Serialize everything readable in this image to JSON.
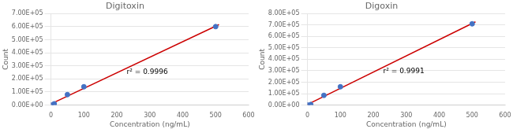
{
  "chart_data": [
    {
      "type": "scatter",
      "title": "Digitoxin",
      "x_label": "Concentration (ng/mL)",
      "y_label": "Count",
      "series": [
        {
          "type": "scatter",
          "color": "#4472C4",
          "x": [
            0,
            10,
            50,
            100,
            500
          ],
          "values": [
            0,
            10000,
            80000,
            140000,
            600000
          ]
        },
        {
          "type": "line",
          "color": "#CC0000",
          "x": [
            0,
            510
          ],
          "values": [
            9131.53,
            615214.27
          ]
        }
      ],
      "annotations": [
        {
          "text": "r² = 0.9996",
          "x": 230,
          "y": 240000
        }
      ],
      "xlim": [
        0,
        600
      ],
      "xticks": [
        0,
        100,
        200,
        300,
        400,
        500,
        600
      ],
      "ylim": [
        0,
        700000
      ],
      "yticks": [
        {
          "value": 0,
          "label": "0.00E+00"
        },
        {
          "value": 100000,
          "label": "1.00E+05"
        },
        {
          "value": 200000,
          "label": "2.00E+05"
        },
        {
          "value": 300000,
          "label": "3.00E+05"
        },
        {
          "value": 400000,
          "label": "4.00E+05"
        },
        {
          "value": 500000,
          "label": "5.00E+05"
        },
        {
          "value": 600000,
          "label": "6.00E+05"
        },
        {
          "value": 700000,
          "label": "7.00E+05"
        }
      ],
      "grid": "y"
    },
    {
      "type": "scatter",
      "title": "Digoxin",
      "x_label": "Concentration (ng/mL)",
      "y_label": "Count",
      "series": [
        {
          "type": "scatter",
          "color": "#4472C4",
          "x": [
            0,
            10,
            50,
            100,
            500
          ],
          "values": [
            0,
            5000,
            85000,
            160000,
            710000
          ]
        },
        {
          "type": "line",
          "color": "#CC0000",
          "x": [
            0,
            510
          ],
          "values": [
            5012.54,
            727464.1
          ]
        }
      ],
      "annotations": [
        {
          "text": "r² = 0.9991",
          "x": 230,
          "y": 280000
        }
      ],
      "xlim": [
        0,
        600
      ],
      "xticks": [
        0,
        100,
        200,
        300,
        400,
        500,
        600
      ],
      "ylim": [
        0,
        800000
      ],
      "yticks": [
        {
          "value": 0,
          "label": "0.00E+00"
        },
        {
          "value": 100000,
          "label": "1.00E+05"
        },
        {
          "value": 200000,
          "label": "2.00E+05"
        },
        {
          "value": 300000,
          "label": "3.00E+05"
        },
        {
          "value": 400000,
          "label": "4.00E+05"
        },
        {
          "value": 500000,
          "label": "5.00E+05"
        },
        {
          "value": 600000,
          "label": "6.00E+05"
        },
        {
          "value": 700000,
          "label": "7.00E+05"
        },
        {
          "value": 800000,
          "label": "8.00E+05"
        }
      ],
      "grid": "y"
    }
  ]
}
